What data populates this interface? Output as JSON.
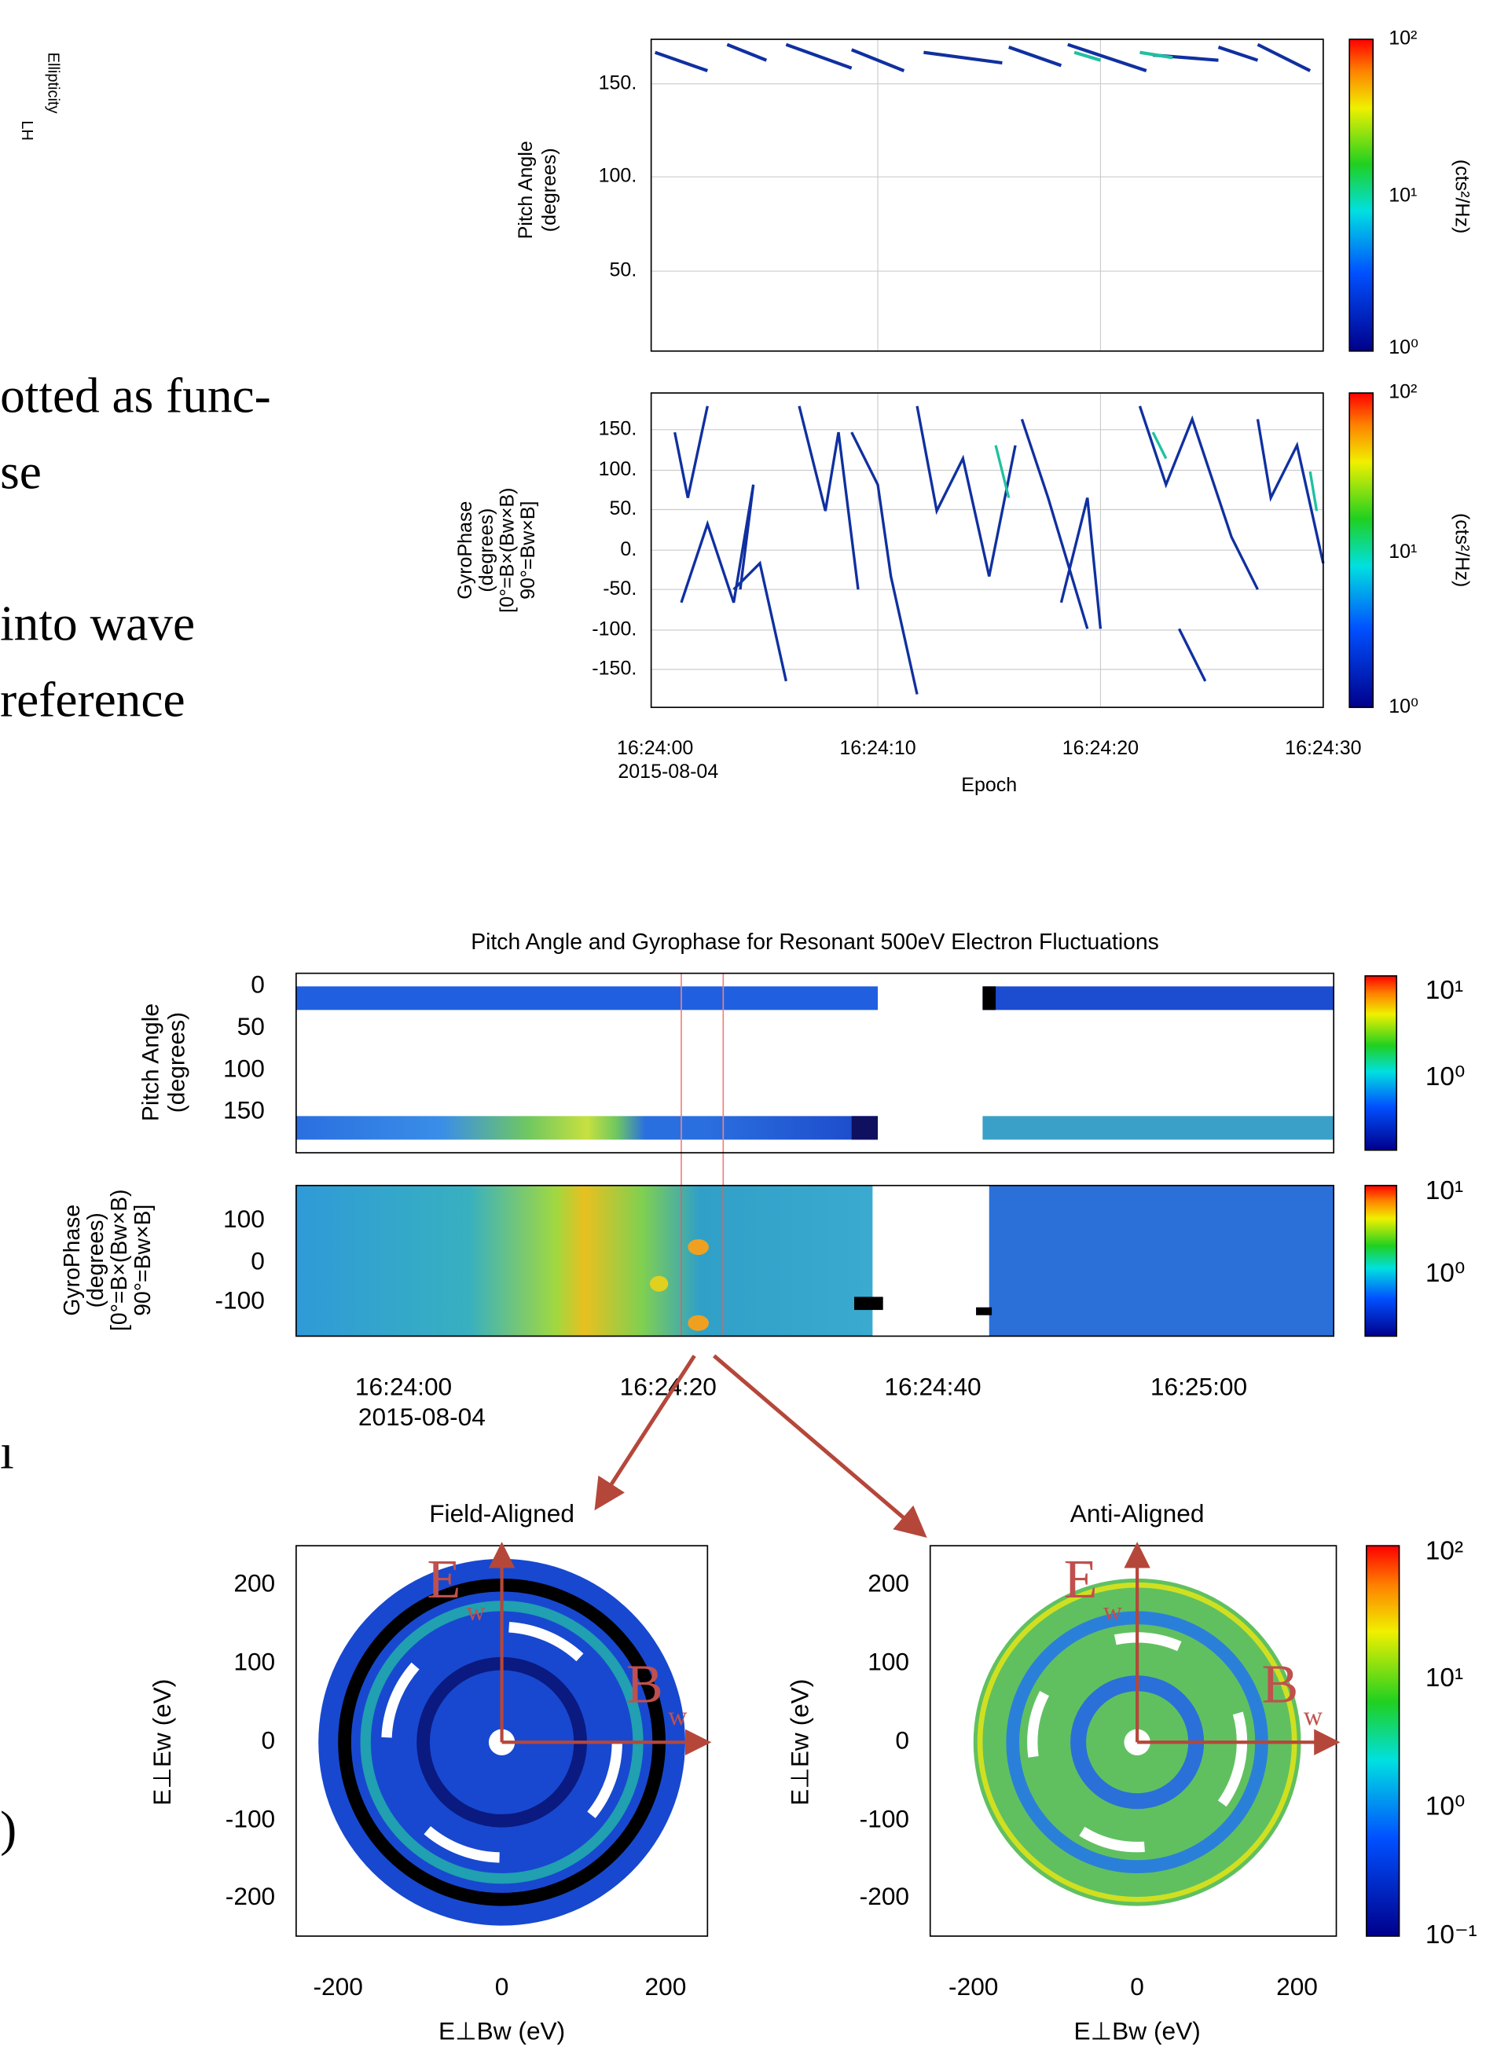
{
  "left_text": {
    "ellipticity": "Ellipticity",
    "lh": "LH",
    "lines": [
      "otted as func-",
      "se",
      "into wave",
      "reference"
    ],
    "fragment_1": "ı",
    "fragment_2": ")"
  },
  "top_figure": {
    "pitch_panel": {
      "ylabel": [
        "Pitch Angle",
        "(degrees)"
      ],
      "yticks": [
        "150.",
        "100.",
        "50."
      ],
      "colorbar_ticks": [
        "10²",
        "10¹",
        "10⁰"
      ],
      "colorbar_label": "(cts²/Hz)"
    },
    "gyro_panel": {
      "ylabel": [
        "GyroPhase",
        "(degrees)",
        "[0°=B×(Bw×B)",
        "90°=Bw×B]"
      ],
      "yticks": [
        "150.",
        "100.",
        "50.",
        "0.",
        "-50.",
        "-100.",
        "-150."
      ],
      "colorbar_ticks": [
        "10²",
        "10¹",
        "10⁰"
      ],
      "colorbar_label": "(cts²/Hz)"
    },
    "xticks": [
      "16:24:00",
      "16:24:10",
      "16:24:20",
      "16:24:30"
    ],
    "date": "2015-08-04",
    "xlabel": "Epoch"
  },
  "bottom_figure": {
    "title": "Pitch Angle and Gyrophase for Resonant 500eV Electron Fluctuations",
    "pitch_panel": {
      "ylabel": [
        "Pitch Angle",
        "(degrees)"
      ],
      "yticks": [
        "0",
        "50",
        "100",
        "150"
      ],
      "colorbar_ticks": [
        "10¹",
        "10⁰"
      ]
    },
    "gyro_panel": {
      "ylabel": [
        "GyroPhase",
        "(degrees)",
        "[0°=B×(Bw×B)",
        "90°=Bw×B]"
      ],
      "yticks": [
        "100",
        "0",
        "-100"
      ],
      "colorbar_ticks": [
        "10¹",
        "10⁰"
      ]
    },
    "xticks": [
      "16:24:00",
      "16:24:20",
      "16:24:40",
      "16:25:00"
    ],
    "date": "2015-08-04"
  },
  "polar_figure": {
    "field_aligned": {
      "title": "Field-Aligned",
      "yticks": [
        "200",
        "100",
        "0",
        "-100",
        "-200"
      ],
      "xticks": [
        "-200",
        "0",
        "200"
      ],
      "xlabel": "E⊥Bw (eV)",
      "ylabel": "E⊥Ew (eV)"
    },
    "anti_aligned": {
      "title": "Anti-Aligned",
      "yticks": [
        "200",
        "100",
        "0",
        "-100",
        "-200"
      ],
      "xticks": [
        "-200",
        "0",
        "200"
      ],
      "xlabel": "E⊥Bw (eV)",
      "ylabel": "E⊥Ew (eV)"
    },
    "colorbar_ticks": [
      "10²",
      "10¹",
      "10⁰",
      "10⁻¹"
    ],
    "vector_e": "E",
    "vector_b": "B",
    "subscript": "w"
  }
}
